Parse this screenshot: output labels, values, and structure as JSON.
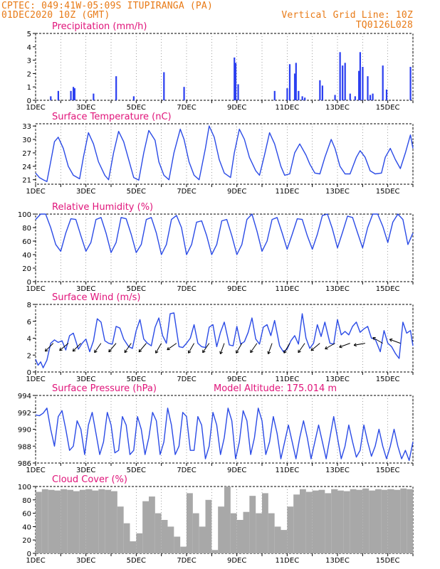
{
  "header": {
    "left_line1": "CPTEC:   049:41W-05:09S   ITUPIRANGA (PA)",
    "left_line2": "01DEC2020 10Z (GMT)",
    "right_line1": "Vertical Grid Line: 10Z",
    "right_line2": "TQ0126L028"
  },
  "colors": {
    "series": "#2b4be6",
    "bars": "#2b3ff0",
    "cloud": "#a8a8a8",
    "title": "#e0147a",
    "header": "#e87a16"
  },
  "x_tick_labels": [
    "1DEC",
    "3DEC",
    "5DEC",
    "7DEC",
    "9DEC",
    "11DEC",
    "13DEC",
    "15DEC"
  ],
  "chart_data": [
    {
      "type": "bar",
      "title": "Precipitation (mm/h)",
      "x_unit": "day",
      "xlim": [
        1,
        16
      ],
      "ylim": [
        0,
        5
      ],
      "yticks": [
        "0",
        "1",
        "2",
        "3",
        "4",
        "5"
      ],
      "x": [
        1.6,
        1.9,
        2.4,
        2.5,
        2.55,
        3.3,
        4.2,
        4.9,
        6.1,
        6.9,
        8.9,
        8.95,
        9.05,
        10.5,
        11.0,
        11.1,
        11.3,
        11.35,
        11.45,
        11.6,
        11.7,
        12.3,
        12.4,
        12.9,
        13.1,
        13.2,
        13.3,
        13.5,
        13.7,
        13.85,
        13.9,
        14.0,
        14.2,
        14.3,
        14.4,
        14.8,
        14.95,
        15.9
      ],
      "values": [
        0.3,
        0.7,
        0.7,
        1.0,
        0.9,
        0.5,
        1.8,
        0.3,
        2.1,
        1.0,
        3.2,
        2.8,
        1.2,
        0.7,
        0.9,
        2.7,
        2.0,
        2.8,
        0.7,
        0.3,
        0.2,
        1.5,
        1.1,
        0.4,
        3.6,
        2.6,
        2.8,
        0.5,
        0.3,
        2.2,
        3.6,
        2.5,
        1.8,
        0.4,
        0.5,
        2.6,
        0.8,
        2.5
      ]
    },
    {
      "type": "line",
      "title": "Surface Temperature (nC)",
      "x_unit": "day",
      "xlim": [
        1,
        16
      ],
      "ylim": [
        20,
        33.5
      ],
      "yticks": [
        "21",
        "24",
        "27",
        "30",
        "33"
      ],
      "x": [
        1.0,
        1.15,
        1.3,
        1.45,
        1.6,
        1.75,
        1.9,
        2.1,
        2.3,
        2.5,
        2.75,
        2.9,
        3.1,
        3.3,
        3.5,
        3.75,
        3.9,
        4.1,
        4.3,
        4.5,
        4.75,
        4.9,
        5.1,
        5.3,
        5.5,
        5.75,
        5.9,
        6.1,
        6.3,
        6.5,
        6.75,
        6.9,
        7.1,
        7.3,
        7.5,
        7.75,
        7.9,
        8.1,
        8.3,
        8.5,
        8.75,
        8.9,
        9.1,
        9.3,
        9.5,
        9.75,
        9.9,
        10.1,
        10.3,
        10.5,
        10.75,
        10.9,
        11.1,
        11.3,
        11.5,
        11.75,
        11.9,
        12.1,
        12.3,
        12.5,
        12.75,
        12.9,
        13.1,
        13.3,
        13.5,
        13.75,
        13.9,
        14.1,
        14.3,
        14.5,
        14.75,
        14.9,
        15.1,
        15.3,
        15.5,
        15.7,
        15.9,
        16.0
      ],
      "values": [
        22.5,
        21.5,
        21.0,
        20.6,
        25.0,
        29.5,
        30.5,
        28.0,
        24.0,
        22.0,
        21.2,
        26.0,
        31.5,
        29.0,
        25.0,
        22.0,
        21.0,
        27.0,
        31.8,
        29.5,
        24.5,
        21.5,
        20.9,
        27.0,
        32.0,
        29.8,
        25.0,
        22.0,
        21.0,
        27.0,
        32.3,
        30.0,
        25.0,
        22.0,
        21.0,
        28.0,
        33.0,
        30.5,
        25.5,
        22.5,
        21.5,
        27.0,
        32.3,
        30.0,
        26.0,
        23.0,
        22.0,
        26.5,
        31.5,
        29.0,
        24.0,
        22.0,
        22.3,
        27.0,
        29.0,
        26.5,
        24.5,
        22.5,
        22.3,
        26.0,
        30.0,
        28.0,
        24.0,
        22.3,
        22.3,
        26.0,
        27.5,
        26.0,
        23.0,
        22.3,
        22.5,
        26.0,
        28.0,
        25.5,
        23.5,
        27.0,
        31.0,
        28.0
      ]
    },
    {
      "type": "line",
      "title": "Relative Humidity (%)",
      "x_unit": "day",
      "xlim": [
        1,
        16
      ],
      "ylim": [
        0,
        100
      ],
      "yticks": [
        "0",
        "20",
        "40",
        "60",
        "80",
        "100"
      ],
      "x": [
        1.0,
        1.2,
        1.4,
        1.6,
        1.8,
        2.0,
        2.2,
        2.4,
        2.6,
        2.8,
        3.0,
        3.2,
        3.4,
        3.6,
        3.8,
        4.0,
        4.2,
        4.4,
        4.6,
        4.8,
        5.0,
        5.2,
        5.4,
        5.6,
        5.8,
        6.0,
        6.2,
        6.4,
        6.6,
        6.8,
        7.0,
        7.2,
        7.4,
        7.6,
        7.8,
        8.0,
        8.2,
        8.4,
        8.6,
        8.8,
        9.0,
        9.2,
        9.4,
        9.6,
        9.8,
        10.0,
        10.2,
        10.4,
        10.6,
        10.8,
        11.0,
        11.2,
        11.4,
        11.6,
        11.8,
        12.0,
        12.2,
        12.4,
        12.6,
        12.8,
        13.0,
        13.2,
        13.4,
        13.6,
        13.8,
        14.0,
        14.2,
        14.4,
        14.6,
        14.8,
        15.0,
        15.2,
        15.4,
        15.6,
        15.8,
        16.0
      ],
      "values": [
        92,
        100,
        100,
        80,
        55,
        45,
        72,
        93,
        92,
        68,
        45,
        58,
        92,
        95,
        72,
        43,
        58,
        95,
        93,
        70,
        43,
        55,
        92,
        95,
        72,
        40,
        55,
        92,
        98,
        80,
        40,
        55,
        88,
        90,
        68,
        40,
        55,
        90,
        92,
        68,
        40,
        55,
        92,
        100,
        75,
        45,
        60,
        92,
        95,
        72,
        48,
        70,
        93,
        92,
        68,
        48,
        70,
        98,
        100,
        78,
        50,
        73,
        97,
        95,
        72,
        50,
        80,
        100,
        100,
        82,
        58,
        88,
        100,
        92,
        55,
        72
      ]
    },
    {
      "type": "line",
      "title": "Surface Wind (m/s)",
      "x_unit": "day",
      "xlim": [
        1,
        16
      ],
      "ylim": [
        0,
        8
      ],
      "yticks": [
        "0",
        "2",
        "4",
        "6",
        "8"
      ],
      "x": [
        1.0,
        1.1,
        1.2,
        1.3,
        1.45,
        1.6,
        1.75,
        1.9,
        2.05,
        2.2,
        2.35,
        2.5,
        2.7,
        2.85,
        3.0,
        3.15,
        3.3,
        3.45,
        3.6,
        3.75,
        3.9,
        4.05,
        4.2,
        4.35,
        4.5,
        4.7,
        4.85,
        5.0,
        5.15,
        5.3,
        5.45,
        5.6,
        5.75,
        5.9,
        6.05,
        6.2,
        6.35,
        6.5,
        6.7,
        6.85,
        7.0,
        7.15,
        7.3,
        7.45,
        7.6,
        7.75,
        7.9,
        8.05,
        8.2,
        8.35,
        8.5,
        8.7,
        8.85,
        9.0,
        9.15,
        9.3,
        9.45,
        9.6,
        9.75,
        9.9,
        10.05,
        10.2,
        10.35,
        10.5,
        10.7,
        10.85,
        11.0,
        11.15,
        11.3,
        11.45,
        11.6,
        11.75,
        11.9,
        12.05,
        12.2,
        12.35,
        12.5,
        12.7,
        12.85,
        13.0,
        13.15,
        13.3,
        13.45,
        13.6,
        13.75,
        13.9,
        14.05,
        14.2,
        14.35,
        14.5,
        14.7,
        14.85,
        15.0,
        15.15,
        15.3,
        15.45,
        15.6,
        15.75,
        15.9,
        16.0
      ],
      "values": [
        1.5,
        0.8,
        1.2,
        0.5,
        1.4,
        3.4,
        3.8,
        3.5,
        3.7,
        2.6,
        4.3,
        4.6,
        2.7,
        3.4,
        3.9,
        2.4,
        3.7,
        6.3,
        5.9,
        3.7,
        3.4,
        3.3,
        5.4,
        5.2,
        3.9,
        3.0,
        2.8,
        4.9,
        6.2,
        3.9,
        3.4,
        3.1,
        5.3,
        6.4,
        4.3,
        3.4,
        6.9,
        7.0,
        3.0,
        2.9,
        3.4,
        4.0,
        5.6,
        3.4,
        3.0,
        2.9,
        5.3,
        5.6,
        3.0,
        4.7,
        5.9,
        3.2,
        3.1,
        5.4,
        3.3,
        3.6,
        4.7,
        6.4,
        3.9,
        3.3,
        5.3,
        5.6,
        4.3,
        6.1,
        3.1,
        2.4,
        2.7,
        3.7,
        4.3,
        3.3,
        6.9,
        4.0,
        2.8,
        3.4,
        5.6,
        4.2,
        5.9,
        3.4,
        3.3,
        6.2,
        4.4,
        4.8,
        4.4,
        5.4,
        5.9,
        4.7,
        5.1,
        5.4,
        4.0,
        3.9,
        2.4,
        4.9,
        3.4,
        3.0,
        2.2,
        1.6,
        5.9,
        4.6,
        4.9,
        3.1
      ]
    },
    {
      "type": "line",
      "title": "Surface Pressure (hPa)",
      "annotation": "Model Altitude: 175.014 m",
      "x_unit": "day",
      "xlim": [
        1,
        16
      ],
      "ylim": [
        986,
        994
      ],
      "yticks": [
        "986",
        "988",
        "990",
        "992",
        "994"
      ],
      "x": [
        1.0,
        1.15,
        1.3,
        1.45,
        1.6,
        1.75,
        1.9,
        2.05,
        2.2,
        2.35,
        2.5,
        2.65,
        2.8,
        2.95,
        3.1,
        3.25,
        3.4,
        3.55,
        3.7,
        3.85,
        4.0,
        4.15,
        4.3,
        4.45,
        4.6,
        4.75,
        4.9,
        5.05,
        5.2,
        5.35,
        5.5,
        5.65,
        5.8,
        5.95,
        6.1,
        6.25,
        6.4,
        6.55,
        6.7,
        6.85,
        7.0,
        7.15,
        7.3,
        7.45,
        7.6,
        7.75,
        7.9,
        8.05,
        8.2,
        8.35,
        8.5,
        8.65,
        8.8,
        8.95,
        9.1,
        9.25,
        9.4,
        9.55,
        9.7,
        9.85,
        10.0,
        10.15,
        10.3,
        10.45,
        10.6,
        10.75,
        10.9,
        11.05,
        11.2,
        11.35,
        11.5,
        11.65,
        11.8,
        11.95,
        12.1,
        12.25,
        12.4,
        12.55,
        12.7,
        12.85,
        13.0,
        13.15,
        13.3,
        13.45,
        13.6,
        13.75,
        13.9,
        14.05,
        14.2,
        14.35,
        14.5,
        14.65,
        14.8,
        14.95,
        15.1,
        15.25,
        15.4,
        15.55,
        15.7,
        15.85,
        16.0
      ],
      "values": [
        991.7,
        991.6,
        991.9,
        992.5,
        990.0,
        988.0,
        991.5,
        992.2,
        990.0,
        987.5,
        988.0,
        991.0,
        990.0,
        987.0,
        990.5,
        992.0,
        989.5,
        987.0,
        988.5,
        992.0,
        990.5,
        987.2,
        987.5,
        991.5,
        990.5,
        987.0,
        987.5,
        991.5,
        990.0,
        987.0,
        989.0,
        992.0,
        991.0,
        987.0,
        988.5,
        992.5,
        990.5,
        987.0,
        988.0,
        992.0,
        991.5,
        987.5,
        987.5,
        991.5,
        990.5,
        986.5,
        988.0,
        992.0,
        990.5,
        987.0,
        989.0,
        992.5,
        991.0,
        986.5,
        988.5,
        992.2,
        991.0,
        987.0,
        989.0,
        992.5,
        991.0,
        987.0,
        988.5,
        991.5,
        989.5,
        986.5,
        988.5,
        990.5,
        988.5,
        986.5,
        989.0,
        991.0,
        989.0,
        986.5,
        988.5,
        990.5,
        988.5,
        986.5,
        989.0,
        991.5,
        989.0,
        986.5,
        988.0,
        990.5,
        988.5,
        986.7,
        987.5,
        990.5,
        988.5,
        986.8,
        988.0,
        990.0,
        988.0,
        986.5,
        988.0,
        990.0,
        988.0,
        986.5,
        987.5,
        986.3,
        988.5
      ]
    },
    {
      "type": "bar",
      "title": "Cloud Cover (%)",
      "x_unit": "day",
      "xlim": [
        1,
        16
      ],
      "ylim": [
        0,
        100
      ],
      "yticks": [
        "0",
        "20",
        "40",
        "60",
        "80",
        "100"
      ],
      "x": [
        1.0,
        1.25,
        1.5,
        1.75,
        2.0,
        2.25,
        2.5,
        2.75,
        3.0,
        3.25,
        3.5,
        3.75,
        4.0,
        4.25,
        4.5,
        4.75,
        5.0,
        5.25,
        5.5,
        5.75,
        6.0,
        6.25,
        6.5,
        6.75,
        7.0,
        7.25,
        7.5,
        7.75,
        8.0,
        8.25,
        8.5,
        8.75,
        9.0,
        9.25,
        9.5,
        9.75,
        10.0,
        10.25,
        10.5,
        10.75,
        11.0,
        11.25,
        11.5,
        11.75,
        12.0,
        12.25,
        12.5,
        12.75,
        13.0,
        13.25,
        13.5,
        13.75,
        14.0,
        14.25,
        14.5,
        14.75,
        15.0,
        15.25,
        15.5,
        15.75,
        16.0
      ],
      "values": [
        92,
        96,
        95,
        94,
        96,
        95,
        93,
        95,
        96,
        94,
        96,
        95,
        93,
        70,
        45,
        18,
        30,
        78,
        85,
        60,
        50,
        40,
        25,
        10,
        90,
        60,
        40,
        80,
        5,
        70,
        100,
        60,
        50,
        62,
        86,
        60,
        90,
        60,
        40,
        35,
        70,
        88,
        96,
        92,
        94,
        95,
        90,
        96,
        94,
        93,
        96,
        95,
        97,
        94,
        96,
        95,
        96,
        95,
        97,
        96,
        98
      ]
    }
  ]
}
